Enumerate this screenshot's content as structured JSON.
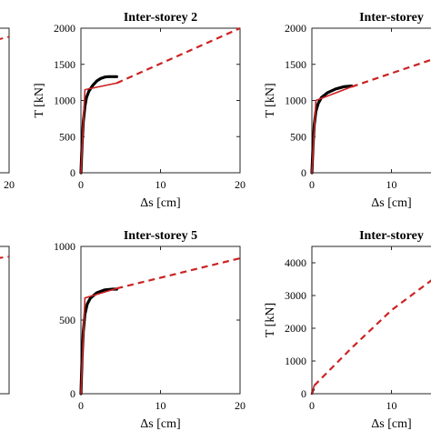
{
  "chart_data": [
    {
      "id": "p1",
      "type": "line",
      "title": "",
      "xlabel": "",
      "ylabel": "",
      "xlim": [
        0,
        20
      ],
      "ylim": [
        0,
        2000
      ],
      "xticks": [],
      "yticks": [],
      "x_tick_labels": [
        "20"
      ],
      "y_tick_labels": [],
      "series": [
        {
          "style": "dashed",
          "color": "#cc2222",
          "x": [
            18.5,
            20
          ],
          "y": [
            1840,
            1880
          ]
        }
      ]
    },
    {
      "id": "p2",
      "type": "line",
      "title": "Inter-storey 2",
      "xlabel": "Δs [cm]",
      "ylabel": "T [kN]",
      "xlim": [
        0,
        20
      ],
      "ylim": [
        0,
        2000
      ],
      "xticks": [
        0,
        10,
        20
      ],
      "yticks": [
        0,
        500,
        1000,
        1500,
        2000
      ],
      "x_tick_labels": [
        "0",
        "10",
        "20"
      ],
      "y_tick_labels": [
        "0",
        "500",
        "1000",
        "1500",
        "2000"
      ],
      "series": [
        {
          "style": "solid",
          "color": "#000000",
          "width": 3.2,
          "x": [
            0,
            0.15,
            0.3,
            0.5,
            0.7,
            1.0,
            1.5,
            2.0,
            2.5,
            3.0,
            3.5,
            4.0,
            4.5
          ],
          "y": [
            0,
            400,
            700,
            920,
            1040,
            1130,
            1210,
            1270,
            1305,
            1325,
            1330,
            1330,
            1330
          ]
        },
        {
          "style": "solid",
          "color": "#cc2222",
          "width": 1.6,
          "x": [
            0,
            0.5,
            4.5
          ],
          "y": [
            0,
            1150,
            1240
          ]
        },
        {
          "style": "dashed",
          "color": "#cc2222",
          "width": 2.2,
          "x": [
            4.5,
            20
          ],
          "y": [
            1240,
            2000
          ]
        }
      ]
    },
    {
      "id": "p3",
      "type": "line",
      "title": "Inter-storey",
      "xlabel": "Δs [cm]",
      "ylabel": "T [kN]",
      "xlim": [
        0,
        20
      ],
      "ylim": [
        0,
        2000
      ],
      "xticks": [
        0,
        10
      ],
      "yticks": [
        0,
        500,
        1000,
        1500,
        2000
      ],
      "x_tick_labels": [
        "0",
        "10"
      ],
      "y_tick_labels": [
        "0",
        "500",
        "1000",
        "1500",
        "2000"
      ],
      "series": [
        {
          "style": "solid",
          "color": "#000000",
          "width": 3.2,
          "x": [
            0,
            0.15,
            0.3,
            0.5,
            0.8,
            1.2,
            2.0,
            3.0,
            4.0,
            5.0
          ],
          "y": [
            0,
            380,
            660,
            850,
            960,
            1040,
            1110,
            1160,
            1190,
            1200
          ]
        },
        {
          "style": "solid",
          "color": "#cc2222",
          "width": 1.6,
          "x": [
            0,
            0.5,
            5.0
          ],
          "y": [
            0,
            1000,
            1190
          ]
        },
        {
          "style": "dashed",
          "color": "#cc2222",
          "width": 2.2,
          "x": [
            5.0,
            16
          ],
          "y": [
            1190,
            1600
          ]
        }
      ]
    },
    {
      "id": "p4",
      "type": "line",
      "title": "",
      "xlabel": "",
      "ylabel": "",
      "xlim": [
        0,
        20
      ],
      "ylim": [
        0,
        1000
      ],
      "xticks": [],
      "yticks": [],
      "x_tick_labels": [],
      "y_tick_labels": [],
      "series": [
        {
          "style": "dashed",
          "color": "#cc2222",
          "x": [
            18.5,
            20
          ],
          "y": [
            920,
            930
          ]
        }
      ]
    },
    {
      "id": "p5",
      "type": "line",
      "title": "Inter-storey 5",
      "xlabel": "Δs [cm]",
      "ylabel": "",
      "xlim": [
        0,
        20
      ],
      "ylim": [
        0,
        1000
      ],
      "xticks": [
        0,
        10,
        20
      ],
      "yticks": [
        0,
        500,
        1000
      ],
      "x_tick_labels": [
        "0",
        "10",
        "20"
      ],
      "y_tick_labels": [
        "0",
        "500",
        "1000"
      ],
      "series": [
        {
          "style": "solid",
          "color": "#000000",
          "width": 3.2,
          "x": [
            0,
            0.15,
            0.3,
            0.5,
            0.8,
            1.2,
            2.0,
            3.0,
            4.0,
            4.5
          ],
          "y": [
            0,
            250,
            420,
            540,
            610,
            650,
            685,
            705,
            710,
            710
          ]
        },
        {
          "style": "solid",
          "color": "#cc2222",
          "width": 1.6,
          "x": [
            0,
            0.5,
            4.5
          ],
          "y": [
            0,
            650,
            715
          ]
        },
        {
          "style": "dashed",
          "color": "#cc2222",
          "width": 2.2,
          "x": [
            4.5,
            20
          ],
          "y": [
            715,
            920
          ]
        }
      ]
    },
    {
      "id": "p6",
      "type": "line",
      "title": "Inter-storey",
      "xlabel": "Δs [cm]",
      "ylabel": "T [kN]",
      "xlim": [
        0,
        20
      ],
      "ylim": [
        0,
        4500
      ],
      "xticks": [
        0,
        10
      ],
      "yticks": [
        0,
        1000,
        2000,
        3000,
        4000
      ],
      "x_tick_labels": [
        "0",
        "10"
      ],
      "y_tick_labels": [
        "0",
        "1000",
        "2000",
        "3000",
        "4000"
      ],
      "series": [
        {
          "style": "solid",
          "color": "#000000",
          "width": 2.4,
          "x": [
            0,
            0.1,
            0.2
          ],
          "y": [
            0,
            80,
            130
          ]
        },
        {
          "style": "solid",
          "color": "#cc2222",
          "width": 1.6,
          "x": [
            0,
            0.3
          ],
          "y": [
            0,
            250
          ]
        },
        {
          "style": "dashed",
          "color": "#cc2222",
          "width": 2.2,
          "x": [
            0.3,
            5,
            10,
            15.5
          ],
          "y": [
            250,
            1400,
            2550,
            3550
          ]
        }
      ]
    }
  ]
}
